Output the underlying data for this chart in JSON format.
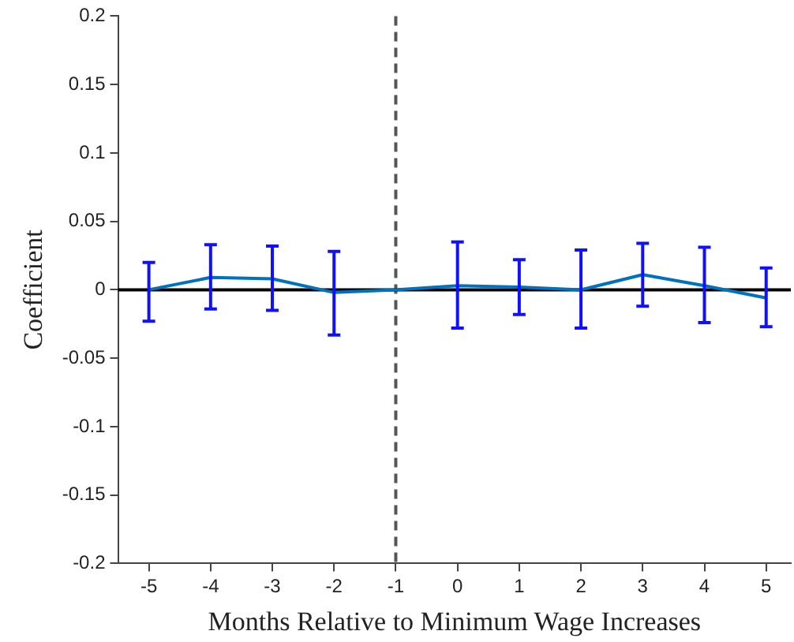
{
  "chart_data": {
    "type": "line",
    "xlabel": "Months Relative to Minimum Wage Increases",
    "ylabel": "Coefficient",
    "x": [
      -5,
      -4,
      -3,
      -2,
      -1,
      0,
      1,
      2,
      3,
      4,
      5
    ],
    "series": [
      {
        "color": "#0072bd",
        "values": [
          0,
          0.009,
          0.008,
          -0.002,
          0,
          0.003,
          0.002,
          0,
          0.011,
          0.003,
          -0.006
        ],
        "errors": [
          [
            -0.023,
            0.02
          ],
          [
            -0.014,
            0.033
          ],
          [
            -0.015,
            0.032
          ],
          [
            -0.033,
            0.028
          ],
          null,
          [
            -0.028,
            0.035
          ],
          [
            -0.018,
            0.022
          ],
          [
            -0.028,
            0.029
          ],
          [
            -0.012,
            0.034
          ],
          [
            -0.024,
            0.031
          ],
          [
            -0.027,
            0.016
          ]
        ]
      }
    ],
    "xlim": [
      -5.5,
      5.4
    ],
    "xticks": [
      -5,
      -4,
      -3,
      -2,
      -1,
      0,
      1,
      2,
      3,
      4,
      5
    ],
    "ylim": [
      -0.2,
      0.2
    ],
    "yticks": [
      -0.2,
      -0.15,
      -0.1,
      -0.05,
      0,
      0.05,
      0.1,
      0.15,
      0.2
    ],
    "ref_lines": [
      {
        "axis": "x",
        "value": -1,
        "color": "#555555",
        "line_style": "dashed"
      },
      {
        "axis": "y",
        "value": 0,
        "color": "#000000",
        "line_style": "solid"
      }
    ],
    "grid": false,
    "legend": false,
    "marker": "none",
    "line_style": "solid"
  }
}
